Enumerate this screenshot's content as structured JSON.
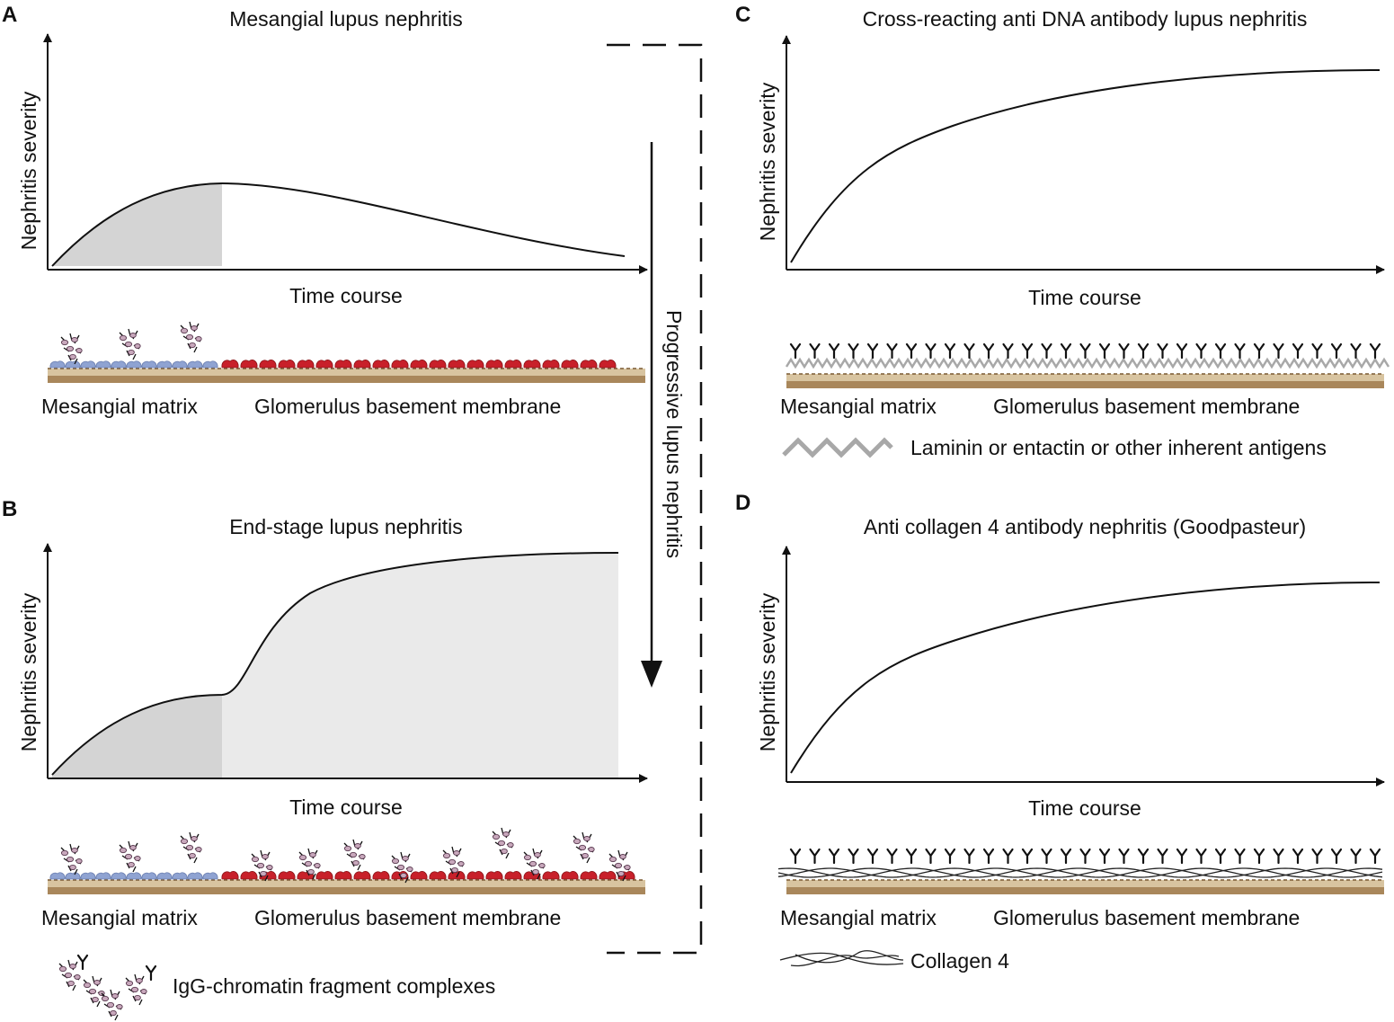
{
  "figure": {
    "flow_label": "Progressive lupus nephritis"
  },
  "colors": {
    "mesangial_cell": "#8fa3d2",
    "gbm_deposit": "#cc2222",
    "membrane_light": "#d8c4a0",
    "membrane_dark": "#a9875b",
    "early_fill": "#d4d4d4",
    "late_fill": "#eaeaea",
    "antigen_zigzag": "#a8a8a8",
    "complex_purple": "#a07090"
  },
  "panels": {
    "A": {
      "letter": "A",
      "title": "Mesangial lupus nephritis",
      "ylabel": "Nephritis severity",
      "xlabel": "Time course",
      "left_label": "Mesangial matrix",
      "right_label": "Glomerulus basement membrane"
    },
    "B": {
      "letter": "B",
      "title": "End-stage lupus nephritis",
      "ylabel": "Nephritis severity",
      "xlabel": "Time course",
      "left_label": "Mesangial matrix",
      "right_label": "Glomerulus basement membrane",
      "legend": "IgG-chromatin fragment complexes"
    },
    "C": {
      "letter": "C",
      "title": "Cross-reacting anti DNA antibody lupus nephritis",
      "ylabel": "Nephritis severity",
      "xlabel": "Time course",
      "left_label": "Mesangial matrix",
      "right_label": "Glomerulus basement membrane",
      "legend": "Laminin or entactin or other inherent antigens"
    },
    "D": {
      "letter": "D",
      "title": "Anti collagen 4 antibody nephritis (Goodpasteur)",
      "ylabel": "Nephritis severity",
      "xlabel": "Time course",
      "left_label": "Mesangial matrix",
      "right_label": "Glomerulus basement membrane",
      "legend": "Collagen 4"
    }
  }
}
